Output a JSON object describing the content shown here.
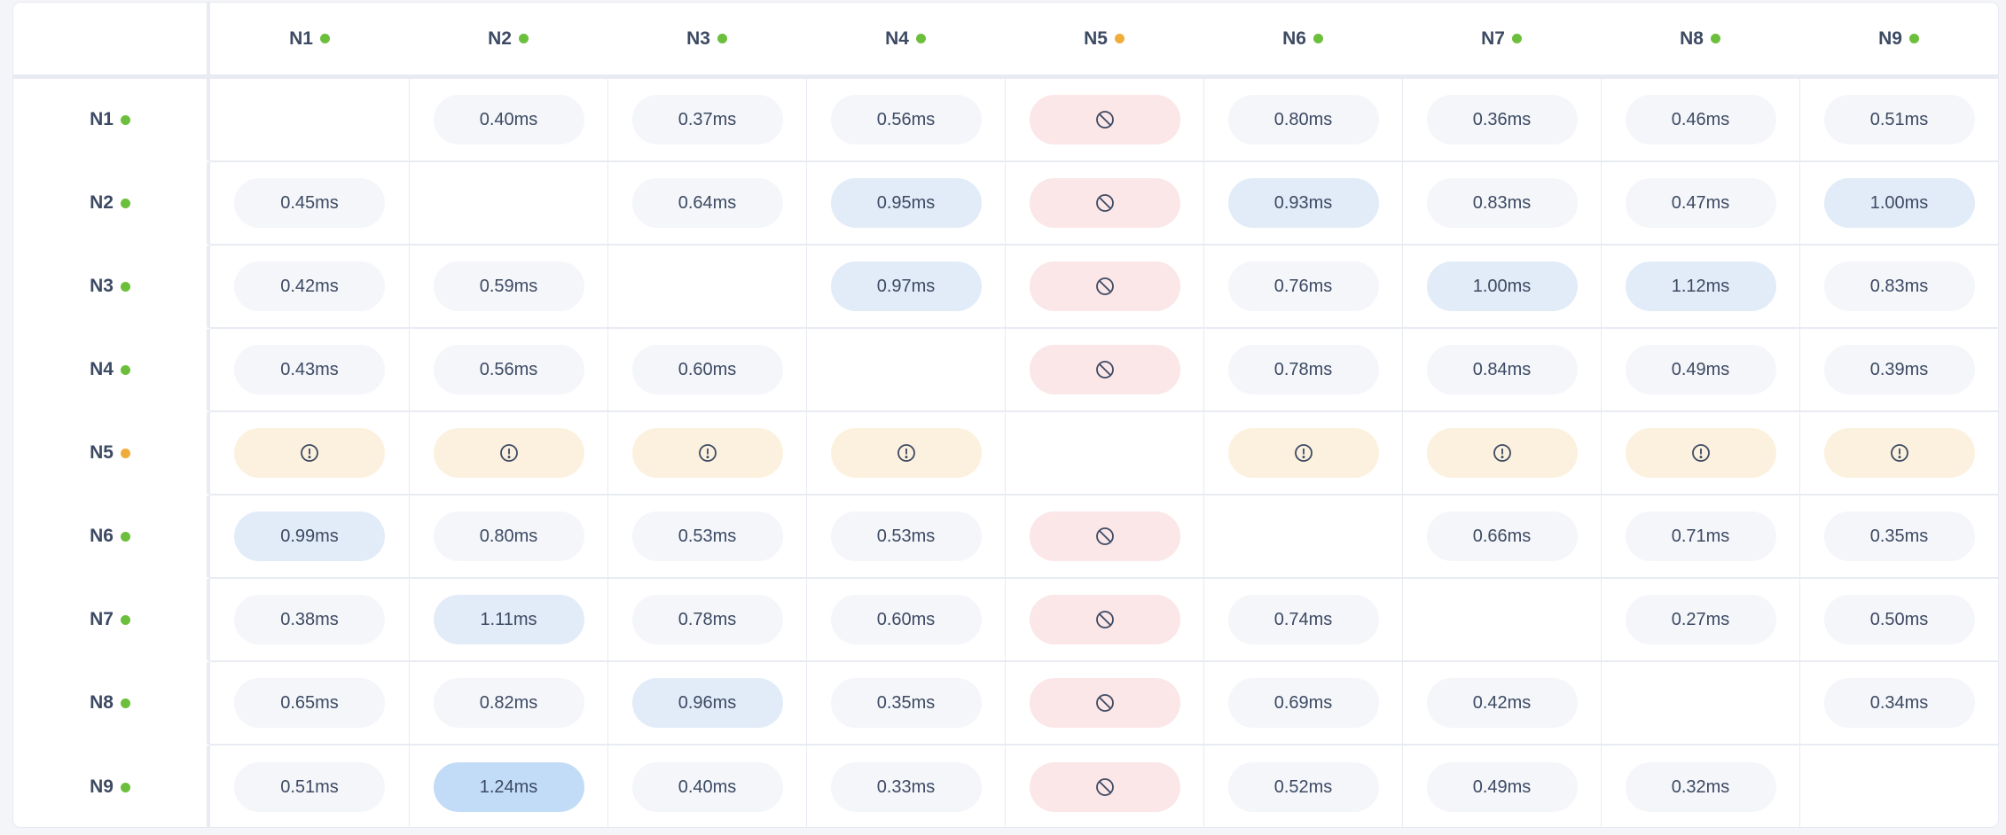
{
  "nodes": [
    {
      "label": "N1",
      "status": "healthy"
    },
    {
      "label": "N2",
      "status": "healthy"
    },
    {
      "label": "N3",
      "status": "healthy"
    },
    {
      "label": "N4",
      "status": "healthy"
    },
    {
      "label": "N5",
      "status": "degraded"
    },
    {
      "label": "N6",
      "status": "healthy"
    },
    {
      "label": "N7",
      "status": "healthy"
    },
    {
      "label": "N8",
      "status": "healthy"
    },
    {
      "label": "N9",
      "status": "healthy"
    }
  ],
  "colors": {
    "healthy": "#6cbf3c",
    "degraded": "#f0ad3c",
    "normal": "#f4f6fa",
    "elevated": "#e2ecf8",
    "high": "#c2dcf7",
    "blocked": "#fbe6e8",
    "warning": "#fcf1de"
  },
  "icons": {
    "blocked": "ban-icon",
    "warning": "alert-circle-icon"
  },
  "matrix": [
    [
      null,
      {
        "v": "0.40ms",
        "t": "normal"
      },
      {
        "v": "0.37ms",
        "t": "normal"
      },
      {
        "v": "0.56ms",
        "t": "normal"
      },
      {
        "t": "blocked"
      },
      {
        "v": "0.80ms",
        "t": "normal"
      },
      {
        "v": "0.36ms",
        "t": "normal"
      },
      {
        "v": "0.46ms",
        "t": "normal"
      },
      {
        "v": "0.51ms",
        "t": "normal"
      }
    ],
    [
      {
        "v": "0.45ms",
        "t": "normal"
      },
      null,
      {
        "v": "0.64ms",
        "t": "normal"
      },
      {
        "v": "0.95ms",
        "t": "elevated"
      },
      {
        "t": "blocked"
      },
      {
        "v": "0.93ms",
        "t": "elevated"
      },
      {
        "v": "0.83ms",
        "t": "normal"
      },
      {
        "v": "0.47ms",
        "t": "normal"
      },
      {
        "v": "1.00ms",
        "t": "elevated"
      }
    ],
    [
      {
        "v": "0.42ms",
        "t": "normal"
      },
      {
        "v": "0.59ms",
        "t": "normal"
      },
      null,
      {
        "v": "0.97ms",
        "t": "elevated"
      },
      {
        "t": "blocked"
      },
      {
        "v": "0.76ms",
        "t": "normal"
      },
      {
        "v": "1.00ms",
        "t": "elevated"
      },
      {
        "v": "1.12ms",
        "t": "elevated"
      },
      {
        "v": "0.83ms",
        "t": "normal"
      }
    ],
    [
      {
        "v": "0.43ms",
        "t": "normal"
      },
      {
        "v": "0.56ms",
        "t": "normal"
      },
      {
        "v": "0.60ms",
        "t": "normal"
      },
      null,
      {
        "t": "blocked"
      },
      {
        "v": "0.78ms",
        "t": "normal"
      },
      {
        "v": "0.84ms",
        "t": "normal"
      },
      {
        "v": "0.49ms",
        "t": "normal"
      },
      {
        "v": "0.39ms",
        "t": "normal"
      }
    ],
    [
      {
        "t": "warning"
      },
      {
        "t": "warning"
      },
      {
        "t": "warning"
      },
      {
        "t": "warning"
      },
      null,
      {
        "t": "warning"
      },
      {
        "t": "warning"
      },
      {
        "t": "warning"
      },
      {
        "t": "warning"
      }
    ],
    [
      {
        "v": "0.99ms",
        "t": "elevated"
      },
      {
        "v": "0.80ms",
        "t": "normal"
      },
      {
        "v": "0.53ms",
        "t": "normal"
      },
      {
        "v": "0.53ms",
        "t": "normal"
      },
      {
        "t": "blocked"
      },
      null,
      {
        "v": "0.66ms",
        "t": "normal"
      },
      {
        "v": "0.71ms",
        "t": "normal"
      },
      {
        "v": "0.35ms",
        "t": "normal"
      }
    ],
    [
      {
        "v": "0.38ms",
        "t": "normal"
      },
      {
        "v": "1.11ms",
        "t": "elevated"
      },
      {
        "v": "0.78ms",
        "t": "normal"
      },
      {
        "v": "0.60ms",
        "t": "normal"
      },
      {
        "t": "blocked"
      },
      {
        "v": "0.74ms",
        "t": "normal"
      },
      null,
      {
        "v": "0.27ms",
        "t": "normal"
      },
      {
        "v": "0.50ms",
        "t": "normal"
      }
    ],
    [
      {
        "v": "0.65ms",
        "t": "normal"
      },
      {
        "v": "0.82ms",
        "t": "normal"
      },
      {
        "v": "0.96ms",
        "t": "elevated"
      },
      {
        "v": "0.35ms",
        "t": "normal"
      },
      {
        "t": "blocked"
      },
      {
        "v": "0.69ms",
        "t": "normal"
      },
      {
        "v": "0.42ms",
        "t": "normal"
      },
      null,
      {
        "v": "0.34ms",
        "t": "normal"
      }
    ],
    [
      {
        "v": "0.51ms",
        "t": "normal"
      },
      {
        "v": "1.24ms",
        "t": "high"
      },
      {
        "v": "0.40ms",
        "t": "normal"
      },
      {
        "v": "0.33ms",
        "t": "normal"
      },
      {
        "t": "blocked"
      },
      {
        "v": "0.52ms",
        "t": "normal"
      },
      {
        "v": "0.49ms",
        "t": "normal"
      },
      {
        "v": "0.32ms",
        "t": "normal"
      },
      null
    ]
  ]
}
